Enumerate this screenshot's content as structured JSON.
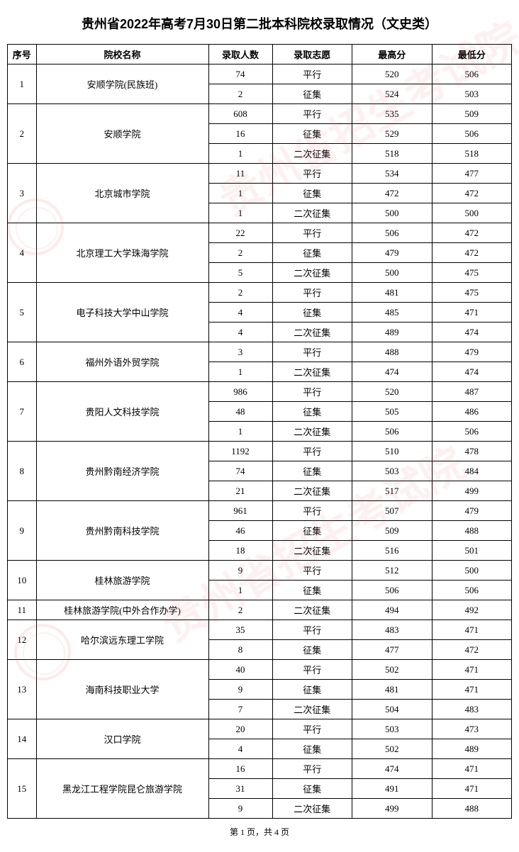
{
  "title": "贵州省2022年高考7月30日第二批本科院校录取情况（文史类）",
  "headers": {
    "idx": "序号",
    "name": "院校名称",
    "count": "录取人数",
    "type": "录取志愿",
    "high": "最高分",
    "low": "最低分"
  },
  "footer": "第 1 页，共 4 页",
  "watermark_text": "贵州省招生考试院",
  "schools": [
    {
      "idx": "1",
      "name": "安顺学院(民族班)",
      "rows": [
        {
          "count": "74",
          "type": "平行",
          "high": "520",
          "low": "506"
        },
        {
          "count": "2",
          "type": "征集",
          "high": "524",
          "low": "503"
        }
      ]
    },
    {
      "idx": "2",
      "name": "安顺学院",
      "rows": [
        {
          "count": "608",
          "type": "平行",
          "high": "535",
          "low": "509"
        },
        {
          "count": "16",
          "type": "征集",
          "high": "529",
          "low": "506"
        },
        {
          "count": "1",
          "type": "二次征集",
          "high": "518",
          "low": "518"
        }
      ]
    },
    {
      "idx": "3",
      "name": "北京城市学院",
      "rows": [
        {
          "count": "11",
          "type": "平行",
          "high": "534",
          "low": "477"
        },
        {
          "count": "1",
          "type": "征集",
          "high": "472",
          "low": "472"
        },
        {
          "count": "1",
          "type": "二次征集",
          "high": "500",
          "low": "500"
        }
      ]
    },
    {
      "idx": "4",
      "name": "北京理工大学珠海学院",
      "rows": [
        {
          "count": "22",
          "type": "平行",
          "high": "506",
          "low": "472"
        },
        {
          "count": "2",
          "type": "征集",
          "high": "479",
          "low": "472"
        },
        {
          "count": "5",
          "type": "二次征集",
          "high": "500",
          "low": "475"
        }
      ]
    },
    {
      "idx": "5",
      "name": "电子科技大学中山学院",
      "rows": [
        {
          "count": "2",
          "type": "平行",
          "high": "481",
          "low": "475"
        },
        {
          "count": "4",
          "type": "征集",
          "high": "485",
          "low": "471"
        },
        {
          "count": "4",
          "type": "二次征集",
          "high": "489",
          "low": "474"
        }
      ]
    },
    {
      "idx": "6",
      "name": "福州外语外贸学院",
      "rows": [
        {
          "count": "3",
          "type": "平行",
          "high": "488",
          "low": "479"
        },
        {
          "count": "1",
          "type": "二次征集",
          "high": "474",
          "low": "474"
        }
      ]
    },
    {
      "idx": "7",
      "name": "贵阳人文科技学院",
      "rows": [
        {
          "count": "986",
          "type": "平行",
          "high": "520",
          "low": "487"
        },
        {
          "count": "48",
          "type": "征集",
          "high": "505",
          "low": "486"
        },
        {
          "count": "1",
          "type": "二次征集",
          "high": "506",
          "low": "506"
        }
      ]
    },
    {
      "idx": "8",
      "name": "贵州黔南经济学院",
      "rows": [
        {
          "count": "1192",
          "type": "平行",
          "high": "510",
          "low": "478"
        },
        {
          "count": "74",
          "type": "征集",
          "high": "503",
          "low": "484"
        },
        {
          "count": "21",
          "type": "二次征集",
          "high": "517",
          "low": "499"
        }
      ]
    },
    {
      "idx": "9",
      "name": "贵州黔南科技学院",
      "rows": [
        {
          "count": "961",
          "type": "平行",
          "high": "507",
          "low": "479"
        },
        {
          "count": "46",
          "type": "征集",
          "high": "509",
          "low": "488"
        },
        {
          "count": "18",
          "type": "二次征集",
          "high": "516",
          "low": "501"
        }
      ]
    },
    {
      "idx": "10",
      "name": "桂林旅游学院",
      "rows": [
        {
          "count": "9",
          "type": "平行",
          "high": "512",
          "low": "500"
        },
        {
          "count": "1",
          "type": "征集",
          "high": "506",
          "low": "506"
        }
      ]
    },
    {
      "idx": "11",
      "name": "桂林旅游学院(中外合作办学)",
      "rows": [
        {
          "count": "2",
          "type": "二次征集",
          "high": "494",
          "low": "492"
        }
      ]
    },
    {
      "idx": "12",
      "name": "哈尔滨远东理工学院",
      "rows": [
        {
          "count": "35",
          "type": "平行",
          "high": "483",
          "low": "471"
        },
        {
          "count": "8",
          "type": "征集",
          "high": "477",
          "low": "472"
        }
      ]
    },
    {
      "idx": "13",
      "name": "海南科技职业大学",
      "rows": [
        {
          "count": "40",
          "type": "平行",
          "high": "502",
          "low": "471"
        },
        {
          "count": "9",
          "type": "征集",
          "high": "481",
          "low": "471"
        },
        {
          "count": "7",
          "type": "二次征集",
          "high": "504",
          "low": "483"
        }
      ]
    },
    {
      "idx": "14",
      "name": "汉口学院",
      "rows": [
        {
          "count": "20",
          "type": "平行",
          "high": "503",
          "low": "473"
        },
        {
          "count": "4",
          "type": "征集",
          "high": "502",
          "low": "489"
        }
      ]
    },
    {
      "idx": "15",
      "name": "黑龙江工程学院昆仑旅游学院",
      "rows": [
        {
          "count": "16",
          "type": "平行",
          "high": "474",
          "low": "471"
        },
        {
          "count": "31",
          "type": "征集",
          "high": "491",
          "low": "471"
        },
        {
          "count": "9",
          "type": "二次征集",
          "high": "499",
          "low": "488"
        }
      ]
    }
  ],
  "style": {
    "title_color": "#000000",
    "border_color": "#000000",
    "watermark_color": "rgba(230,60,60,0.08)"
  }
}
